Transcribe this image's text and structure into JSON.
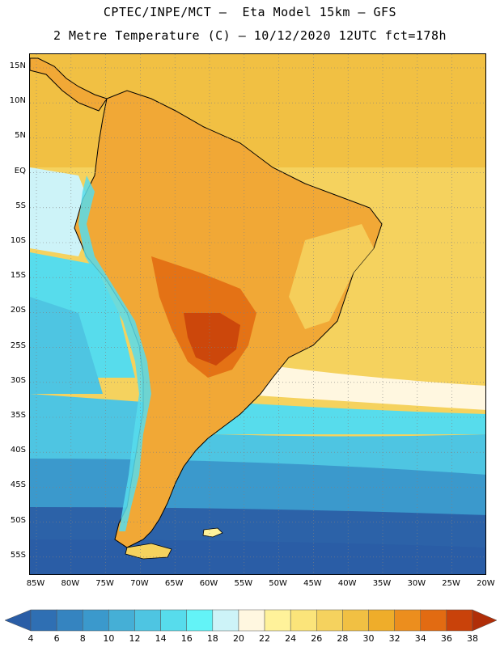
{
  "header": {
    "title_line1": "CPTEC/INPE/MCT –  Eta Model 15km – GFS",
    "title_line2": "2 Metre Temperature (C) – 10/12/2020 12UTC fct=178h"
  },
  "map": {
    "lat_labels": [
      "15N",
      "10N",
      "5N",
      "EQ",
      "5S",
      "10S",
      "15S",
      "20S",
      "25S",
      "30S",
      "35S",
      "40S",
      "45S",
      "50S",
      "55S"
    ],
    "lon_labels": [
      "85W",
      "80W",
      "75W",
      "70W",
      "65W",
      "60W",
      "55W",
      "50W",
      "45W",
      "40W",
      "35W",
      "30W",
      "25W",
      "20W"
    ],
    "colors": {
      "deep_ocean": "#2c62a8",
      "mid_ocean": "#3aa9d4",
      "cool_ocean": "#52cfe8",
      "warm_ocean": "#f0d65a",
      "land": "#f1a836",
      "hot_land": "#d66a1a",
      "outline": "#000000"
    }
  },
  "legend": {
    "ticks": [
      "4",
      "6",
      "8",
      "10",
      "12",
      "14",
      "16",
      "18",
      "20",
      "22",
      "24",
      "26",
      "28",
      "30",
      "32",
      "34",
      "36",
      "38"
    ],
    "colors": [
      "#2a5da6",
      "#2f6fb3",
      "#3584c0",
      "#3b99cc",
      "#45afd6",
      "#4ec5e2",
      "#57dcec",
      "#63f3f7",
      "#cdf3f8",
      "#fff7e0",
      "#fff29a",
      "#fbe47a",
      "#f5d25e",
      "#f1c043",
      "#efad2a",
      "#ec8e1e",
      "#e26b12",
      "#c9420a",
      "#b02e08"
    ]
  }
}
